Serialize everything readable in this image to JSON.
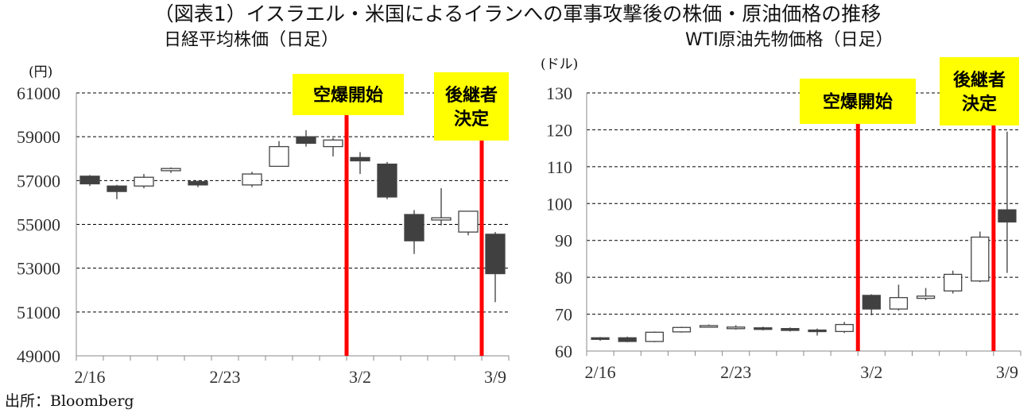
{
  "title": "（図表1）イスラエル・米国によるイランへの軍事攻撃後の株価・原油価格の推移",
  "source": "出所：Bloomberg",
  "colors": {
    "bull": "#ffffff",
    "bear": "#404040",
    "event_line": "#ff0000",
    "annotation_bg": "#ffff00",
    "grid": "#000000"
  },
  "chart_data": [
    {
      "type": "candlestick",
      "title": "日経平均株価（日足）",
      "unit": "(円)",
      "ylim": [
        49000,
        61000
      ],
      "yticks": [
        49000,
        51000,
        53000,
        55000,
        57000,
        59000,
        61000
      ],
      "xlabels": [
        {
          "index": 0,
          "text": "2/16"
        },
        {
          "index": 5,
          "text": "2/23"
        },
        {
          "index": 10,
          "text": "3/2"
        },
        {
          "index": 15,
          "text": "3/9"
        }
      ],
      "grid": "horizontal dashed",
      "candles": [
        {
          "open": 57200,
          "high": 57250,
          "low": 56750,
          "close": 56850
        },
        {
          "open": 56750,
          "high": 56800,
          "low": 56150,
          "close": 56500
        },
        {
          "open": 56750,
          "high": 57300,
          "low": 56650,
          "close": 57150
        },
        {
          "open": 57450,
          "high": 57600,
          "low": 57350,
          "close": 57550
        },
        {
          "open": 56950,
          "high": 57000,
          "low": 56700,
          "close": 56800
        },
        null,
        {
          "open": 56800,
          "high": 57400,
          "low": 56700,
          "close": 57300
        },
        {
          "open": 57650,
          "high": 58800,
          "low": 57650,
          "close": 58550
        },
        {
          "open": 59000,
          "high": 59300,
          "low": 58550,
          "close": 58700
        },
        {
          "open": 58550,
          "high": 58950,
          "low": 58100,
          "close": 58850
        },
        {
          "open": 58050,
          "high": 58300,
          "low": 57300,
          "close": 57900
        },
        {
          "open": 57750,
          "high": 57850,
          "low": 56150,
          "close": 56250
        },
        {
          "open": 55450,
          "high": 55650,
          "low": 53650,
          "close": 54250
        },
        {
          "open": 55200,
          "high": 56650,
          "low": 54950,
          "close": 55300
        },
        {
          "open": 54650,
          "high": 55600,
          "low": 54500,
          "close": 55600
        },
        {
          "open": 54550,
          "high": 54650,
          "low": 51450,
          "close": 52750
        }
      ],
      "events": [
        {
          "index": 9.5,
          "label_lines": [
            "空爆開始"
          ]
        },
        {
          "index": 14.5,
          "label_lines": [
            "後継者",
            "決定"
          ]
        }
      ]
    },
    {
      "type": "candlestick",
      "title": "WTI原油先物価格（日足）",
      "unit": "(ドル)",
      "ylim": [
        60,
        130
      ],
      "yticks": [
        60,
        70,
        80,
        90,
        100,
        110,
        120,
        130
      ],
      "xlabels": [
        {
          "index": 0,
          "text": "2/16"
        },
        {
          "index": 5,
          "text": "2/23"
        },
        {
          "index": 10,
          "text": "3/2"
        },
        {
          "index": 15,
          "text": "3/9"
        }
      ],
      "grid": "horizontal dashed",
      "candles": [
        {
          "open": 63.6,
          "high": 63.8,
          "low": 62.8,
          "close": 63.5
        },
        {
          "open": 63.6,
          "high": 63.9,
          "low": 62.4,
          "close": 62.6
        },
        {
          "open": 62.6,
          "high": 65.3,
          "low": 62.4,
          "close": 65.1
        },
        {
          "open": 65.2,
          "high": 66.6,
          "low": 65.0,
          "close": 66.4
        },
        {
          "open": 66.6,
          "high": 67.2,
          "low": 66.4,
          "close": 66.9
        },
        {
          "open": 66.2,
          "high": 67.0,
          "low": 65.8,
          "close": 66.5
        },
        {
          "open": 66.3,
          "high": 66.6,
          "low": 65.6,
          "close": 66.0
        },
        {
          "open": 66.1,
          "high": 66.4,
          "low": 65.3,
          "close": 65.6
        },
        {
          "open": 65.7,
          "high": 66.1,
          "low": 64.2,
          "close": 65.3
        },
        {
          "open": 65.3,
          "high": 67.9,
          "low": 64.9,
          "close": 67.2
        },
        {
          "open": 75.1,
          "high": 75.4,
          "low": 69.7,
          "close": 71.4
        },
        {
          "open": 71.4,
          "high": 78.0,
          "low": 71.0,
          "close": 74.5
        },
        {
          "open": 74.3,
          "high": 77.1,
          "low": 73.8,
          "close": 74.9
        },
        {
          "open": 76.3,
          "high": 81.8,
          "low": 75.6,
          "close": 80.8
        },
        {
          "open": 79.0,
          "high": 92.4,
          "low": 78.7,
          "close": 90.9
        },
        {
          "open": 98.3,
          "high": 119.5,
          "low": 81.2,
          "close": 95.0
        }
      ],
      "events": [
        {
          "index": 9.5,
          "label_lines": [
            "空爆開始"
          ]
        },
        {
          "index": 14.5,
          "label_lines": [
            "後継者",
            "決定"
          ]
        }
      ]
    }
  ]
}
